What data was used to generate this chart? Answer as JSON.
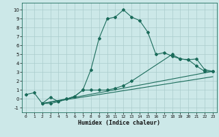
{
  "xlabel": "Humidex (Indice chaleur)",
  "background_color": "#cce8e8",
  "grid_color": "#aacccc",
  "line_color": "#1a6b5a",
  "xlim": [
    -0.5,
    23.5
  ],
  "ylim": [
    -1.5,
    10.8
  ],
  "xticks": [
    0,
    1,
    2,
    3,
    4,
    5,
    6,
    7,
    8,
    9,
    10,
    11,
    12,
    13,
    14,
    15,
    16,
    17,
    18,
    19,
    20,
    21,
    22,
    23
  ],
  "yticks": [
    -1,
    0,
    1,
    2,
    3,
    4,
    5,
    6,
    7,
    8,
    9,
    10
  ],
  "line1_x": [
    0,
    1,
    2,
    3,
    4,
    5,
    6,
    7,
    8,
    9,
    10,
    11,
    12,
    13,
    14,
    15,
    16,
    17,
    18,
    19,
    20,
    21,
    22,
    23
  ],
  "line1_y": [
    0.5,
    0.7,
    -0.5,
    0.2,
    -0.3,
    0.0,
    0.3,
    1.0,
    3.3,
    6.8,
    9.0,
    9.2,
    10.0,
    9.2,
    8.8,
    7.5,
    5.0,
    5.2,
    4.8,
    4.5,
    4.4,
    3.7,
    3.1,
    3.1
  ],
  "line2_x": [
    2,
    3,
    4,
    5,
    6,
    7,
    8,
    9,
    10,
    11,
    12,
    13,
    18,
    19,
    20,
    21,
    22,
    23
  ],
  "line2_y": [
    -0.5,
    -0.5,
    -0.3,
    0.0,
    0.3,
    1.0,
    1.0,
    1.0,
    1.0,
    1.2,
    1.5,
    2.0,
    5.0,
    4.5,
    4.4,
    4.5,
    3.3,
    3.1
  ],
  "line3_x": [
    2,
    23
  ],
  "line3_y": [
    -0.5,
    3.1
  ],
  "line4_x": [
    2,
    23
  ],
  "line4_y": [
    -0.5,
    2.5
  ]
}
